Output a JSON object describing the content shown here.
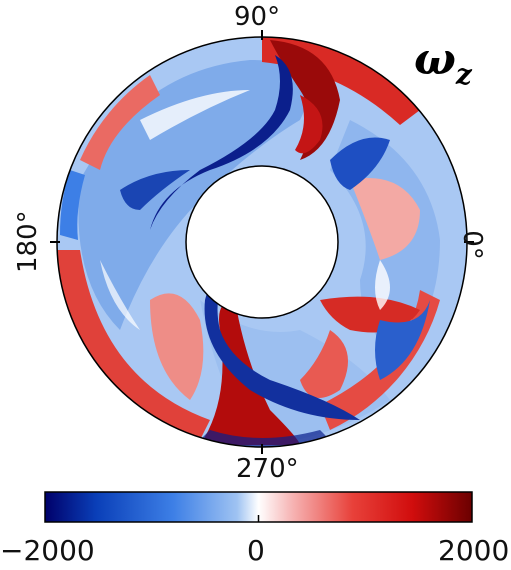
{
  "plot": {
    "quantity_symbol": "ω",
    "quantity_subscript": "z",
    "angle_labels": {
      "top": "90°",
      "left": "180°",
      "bottom": "270°",
      "right": "0°"
    }
  },
  "colorbar": {
    "min_label": "−2000",
    "mid_label": "0",
    "max_label": "2000",
    "colors": [
      "#00006a",
      "#0a3fb8",
      "#3d7fe6",
      "#9fc3f2",
      "#ffffff",
      "#f6b3b3",
      "#e8413a",
      "#d10d0d",
      "#6b0000"
    ]
  },
  "colors": {
    "negative_strong": "#0b1f8c",
    "negative": "#2f6fd8",
    "negative_light": "#a9c8f3",
    "neutral": "#ffffff",
    "positive_light": "#f4b1b1",
    "positive": "#e2312b",
    "positive_strong": "#8c0000"
  }
}
